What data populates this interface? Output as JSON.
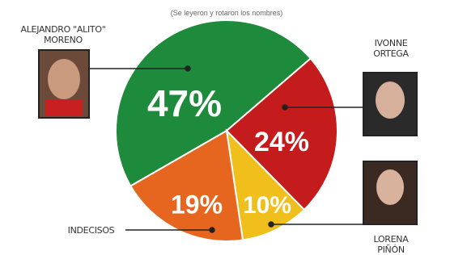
{
  "chart_data": {
    "type": "pie",
    "subtitle": "(Se leyeron y rotaron los nombres)",
    "categories": [
      "ALEJANDRO \"ALITO\" MORENO",
      "IVONNE ORTEGA",
      "LORENA PIÑÓN",
      "INDECISOS"
    ],
    "values": [
      47,
      24,
      10,
      19
    ],
    "value_labels": [
      "47%",
      "24%",
      "10%",
      "19%"
    ],
    "colors": [
      "#1e8a3c",
      "#c41c1c",
      "#f0bf1c",
      "#e6661f"
    ]
  }
}
